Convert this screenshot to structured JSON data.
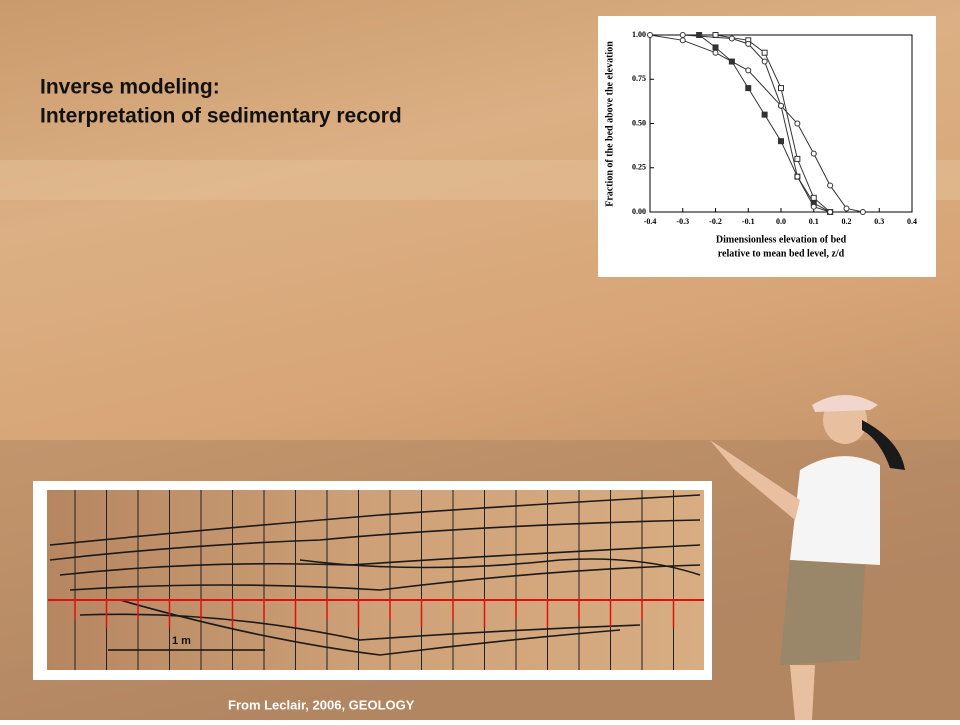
{
  "slide": {
    "title_lines": [
      "Inverse modeling:",
      "Interpretation of sedimentary record"
    ],
    "scale_label": "1 m",
    "caption": "From Leclair, 2006, GEOLOGY"
  },
  "chart_data": {
    "type": "line",
    "y_label": "Fraction of the bed above the elevation",
    "x_label_lines": [
      "Dimensionless elevation of bed",
      "relative to mean bed level, z/d"
    ],
    "xlim": [
      -0.4,
      0.4
    ],
    "ylim": [
      0,
      1
    ],
    "xticks": [
      -0.4,
      -0.3,
      -0.2,
      -0.1,
      {
        "value": 0,
        "label": "0.0"
      },
      0.1,
      0.2,
      0.3,
      0.4
    ],
    "yticks": [
      {
        "value": 0,
        "label": "0.00"
      },
      {
        "value": 0.25,
        "label": "0.25"
      },
      {
        "value": 0.5,
        "label": "0.50"
      },
      {
        "value": 0.75,
        "label": "0.75"
      },
      {
        "value": 1,
        "label": "1.00"
      }
    ],
    "series": [
      {
        "color": "#333333",
        "marker": "open-circle",
        "x": [
          -0.4,
          -0.3,
          -0.2,
          -0.1,
          0,
          0.05,
          0.1,
          0.15,
          0.2,
          0.25
        ],
        "values": [
          1,
          0.97,
          0.9,
          0.8,
          0.6,
          0.5,
          0.33,
          0.15,
          0.02,
          0
        ]
      },
      {
        "color": "#333333",
        "marker": "filled-square",
        "x": [
          -0.25,
          -0.2,
          -0.15,
          -0.1,
          -0.05,
          0,
          0.05,
          0.1,
          0.15
        ],
        "values": [
          1,
          0.93,
          0.85,
          0.7,
          0.55,
          0.4,
          0.2,
          0.05,
          0
        ]
      },
      {
        "color": "#333333",
        "marker": "open-square",
        "x": [
          -0.2,
          -0.1,
          -0.05,
          0,
          0.05,
          0.1,
          0.15
        ],
        "values": [
          1,
          0.97,
          0.9,
          0.7,
          0.3,
          0.08,
          0
        ]
      },
      {
        "color": "#333333",
        "marker": "open-circle",
        "x": [
          -0.3,
          -0.15,
          -0.1,
          -0.05,
          0,
          0.05,
          0.1,
          0.15
        ],
        "values": [
          1,
          0.98,
          0.95,
          0.85,
          0.6,
          0.2,
          0.03,
          0
        ]
      }
    ]
  }
}
